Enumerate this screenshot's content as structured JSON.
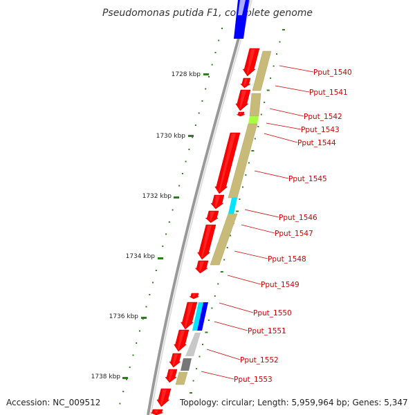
{
  "title": "Pseudomonas putida F1, complete genome",
  "footer": {
    "accession": "Accession: NC_009512",
    "topology": "Topology: circular; Length: 5,959,964 bp; Genes: 5,347"
  },
  "ticks": [
    "1728 kbp",
    "1730 kbp",
    "1732 kbp",
    "1734 kbp",
    "1736 kbp",
    "1738 kbp"
  ],
  "genes": [
    "Pput_1540",
    "Pput_1541",
    "Pput_1542",
    "Pput_1543",
    "Pput_1544",
    "Pput_1545",
    "Pput_1546",
    "Pput_1547",
    "Pput_1548",
    "Pput_1549",
    "Pput_1550",
    "Pput_1551",
    "Pput_1552",
    "Pput_1553"
  ],
  "colors": {
    "cds": "#ff0000",
    "backbone": "#999999",
    "tick_major": "#2e7d1e",
    "label": "#cc0000",
    "cog_khaki": "#c8bb7a",
    "cog_green": "#aaff44",
    "cog_cyan": "#00e5ff",
    "cog_blue": "#0000ff",
    "cog_gray": "#c8c8c8",
    "cog_darkgray": "#777777"
  }
}
